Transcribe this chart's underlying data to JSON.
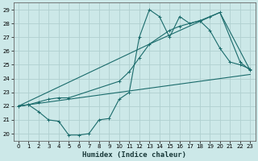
{
  "xlabel": "Humidex (Indice chaleur)",
  "xlim": [
    -0.5,
    23.5
  ],
  "ylim": [
    19.5,
    29.5
  ],
  "xticks": [
    0,
    1,
    2,
    3,
    4,
    5,
    6,
    7,
    8,
    9,
    10,
    11,
    12,
    13,
    14,
    15,
    16,
    17,
    18,
    19,
    20,
    21,
    22,
    23
  ],
  "yticks": [
    20,
    21,
    22,
    23,
    24,
    25,
    26,
    27,
    28,
    29
  ],
  "background_color": "#cce8e8",
  "grid_color": "#b0d0d0",
  "line_color": "#1a6b6b",
  "line1_x": [
    0,
    1,
    2,
    3,
    4,
    5,
    6,
    7,
    8,
    9,
    10,
    11,
    12,
    13,
    14,
    15,
    16,
    17,
    18,
    19,
    20,
    21,
    22,
    23
  ],
  "line1_y": [
    22.0,
    22.1,
    21.6,
    21.0,
    20.9,
    19.9,
    19.9,
    20.0,
    21.0,
    21.1,
    22.5,
    23.0,
    27.0,
    29.0,
    28.5,
    27.0,
    28.5,
    28.0,
    28.2,
    27.5,
    26.2,
    25.2,
    25.0,
    24.7
  ],
  "line2_x": [
    0,
    1,
    2,
    3,
    4,
    5,
    10,
    11,
    12,
    13,
    15,
    16,
    18,
    19,
    20,
    22,
    23
  ],
  "line2_y": [
    22.0,
    22.1,
    22.3,
    22.5,
    22.6,
    22.6,
    23.8,
    24.5,
    25.5,
    26.5,
    27.5,
    27.8,
    28.2,
    28.5,
    28.8,
    25.2,
    24.6
  ],
  "line3_x": [
    0,
    23
  ],
  "line3_y": [
    22.0,
    24.3
  ],
  "line4_x": [
    0,
    13,
    20,
    23
  ],
  "line4_y": [
    22.0,
    26.5,
    28.8,
    24.6
  ]
}
